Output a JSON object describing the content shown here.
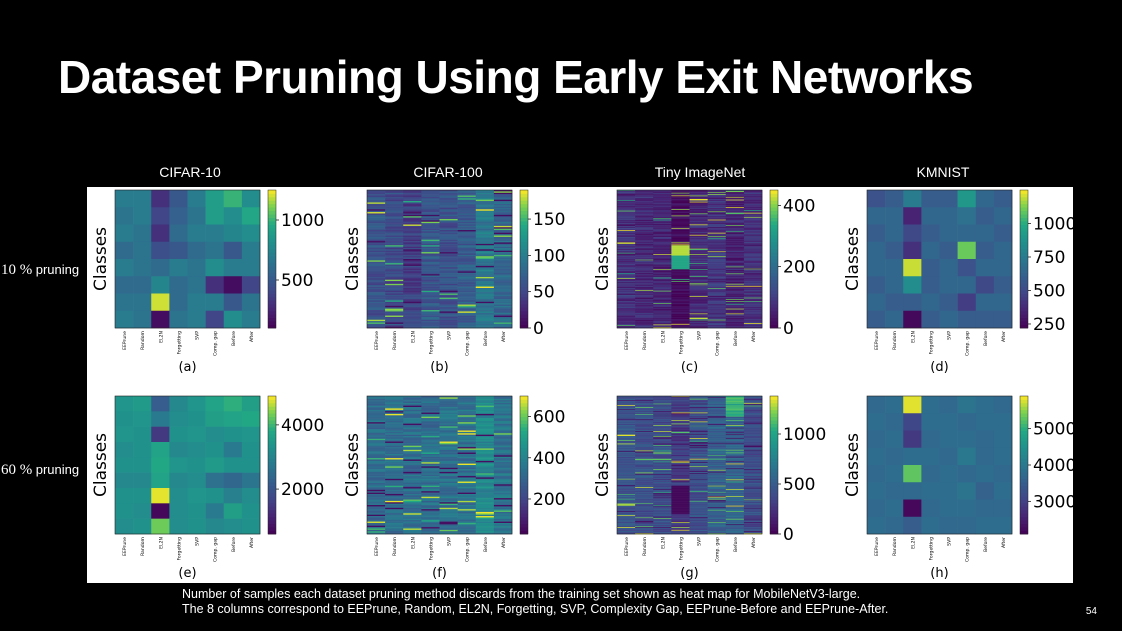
{
  "slide": {
    "title": "Dataset Pruning Using Early Exit Networks",
    "page_number": "54"
  },
  "datasets": [
    "CIFAR-10",
    "CIFAR-100",
    "Tiny ImageNet",
    "KMNIST"
  ],
  "rows": [
    {
      "pct": "10 %",
      "word": "pruning"
    },
    {
      "pct": "60 %",
      "word": "pruning"
    }
  ],
  "caption": {
    "line1": "Number of samples each dataset pruning method discards from the training set shown as heat map for MobileNetV3-large.",
    "line2": "The 8 columns correspond to EEPrune, Random, EL2N, Forgetting, SVP, Complexity Gap, EEPrune-Before and EEPrune-After."
  },
  "chart_data": [
    {
      "type": "heatmap",
      "subplot": "(a)",
      "dataset": "CIFAR-10",
      "pruning": "10 %",
      "ylabel": "Classes",
      "x": [
        "EEPrune",
        "Random",
        "EL2N",
        "Forgetting",
        "SVP",
        "Comp. gap",
        "Before",
        "After"
      ],
      "colorbar": {
        "ticks": [
          500,
          1000
        ],
        "range": [
          100,
          1250
        ]
      },
      "values": [
        [
          700,
          700,
          300,
          500,
          700,
          900,
          1000,
          800
        ],
        [
          650,
          700,
          400,
          550,
          650,
          900,
          800,
          950
        ],
        [
          700,
          650,
          300,
          600,
          700,
          700,
          750,
          800
        ],
        [
          600,
          650,
          450,
          500,
          600,
          650,
          500,
          700
        ],
        [
          700,
          650,
          600,
          700,
          650,
          800,
          700,
          700
        ],
        [
          600,
          600,
          750,
          600,
          650,
          300,
          150,
          400
        ],
        [
          650,
          650,
          1200,
          600,
          700,
          700,
          500,
          650
        ],
        [
          700,
          650,
          150,
          650,
          700,
          400,
          800,
          700
        ]
      ]
    },
    {
      "type": "heatmap",
      "subplot": "(b)",
      "dataset": "CIFAR-100",
      "pruning": "10 %",
      "ylabel": "Classes",
      "x": [
        "EEPrune",
        "Random",
        "EL2N",
        "Forgetting",
        "SVP",
        "Comp. gap",
        "Before",
        "After"
      ],
      "colorbar": {
        "ticks": [
          0,
          50,
          100,
          150
        ],
        "range": [
          0,
          190
        ]
      },
      "generated_rows": 100,
      "column_levels": [
        60,
        55,
        45,
        65,
        60,
        70,
        95,
        80
      ]
    },
    {
      "type": "heatmap",
      "subplot": "(c)",
      "dataset": "Tiny ImageNet",
      "pruning": "10 %",
      "ylabel": "Classes",
      "x": [
        "EEPrune",
        "Random",
        "EL2N",
        "Forgetting",
        "SVP",
        "Comp. gap",
        "Before",
        "After"
      ],
      "colorbar": {
        "ticks": [
          0,
          200,
          400
        ],
        "range": [
          0,
          450
        ]
      },
      "generated_rows": 200,
      "column_levels": [
        80,
        70,
        60,
        10,
        70,
        90,
        60,
        80
      ]
    },
    {
      "type": "heatmap",
      "subplot": "(d)",
      "dataset": "KMNIST",
      "pruning": "10 %",
      "ylabel": "Classes",
      "x": [
        "EEPrune",
        "Random",
        "EL2N",
        "Forgetting",
        "SVP",
        "Comp. gap",
        "Before",
        "After"
      ],
      "colorbar": {
        "ticks": [
          250,
          500,
          750,
          1000
        ],
        "range": [
          220,
          1250
        ]
      },
      "values": [
        [
          550,
          600,
          750,
          600,
          600,
          900,
          650,
          600
        ],
        [
          650,
          650,
          350,
          650,
          650,
          700,
          600,
          650
        ],
        [
          600,
          650,
          500,
          600,
          650,
          650,
          650,
          600
        ],
        [
          650,
          600,
          400,
          650,
          600,
          1100,
          600,
          650
        ],
        [
          650,
          650,
          1200,
          600,
          650,
          550,
          650,
          650
        ],
        [
          600,
          650,
          850,
          600,
          650,
          650,
          500,
          600
        ],
        [
          650,
          600,
          600,
          650,
          600,
          450,
          650,
          650
        ],
        [
          600,
          650,
          250,
          600,
          650,
          600,
          600,
          600
        ]
      ]
    },
    {
      "type": "heatmap",
      "subplot": "(e)",
      "dataset": "CIFAR-10",
      "pruning": "60 %",
      "ylabel": "Classes",
      "x": [
        "EEPrune",
        "Random",
        "EL2N",
        "Forgetting",
        "SVP",
        "Comp. gap",
        "Before",
        "After"
      ],
      "colorbar": {
        "ticks": [
          2000,
          4000
        ],
        "range": [
          600,
          4900
        ]
      },
      "values": [
        [
          3400,
          3500,
          2200,
          3100,
          3400,
          3700,
          3900,
          3600
        ],
        [
          3300,
          3400,
          2800,
          3200,
          3300,
          3600,
          3700,
          3800
        ],
        [
          3400,
          3300,
          1500,
          3300,
          3400,
          3200,
          3300,
          3400
        ],
        [
          3200,
          3300,
          3700,
          3100,
          3200,
          3300,
          2800,
          3300
        ],
        [
          3300,
          3300,
          3800,
          3400,
          3300,
          3500,
          3300,
          3300
        ],
        [
          3100,
          3100,
          3700,
          3100,
          3200,
          2600,
          2400,
          2700
        ],
        [
          3300,
          3300,
          4800,
          3200,
          3400,
          3300,
          2900,
          3200
        ],
        [
          3300,
          3200,
          700,
          3200,
          3300,
          2800,
          3600,
          3300
        ],
        [
          3200,
          3300,
          4300,
          3200,
          3300,
          3100,
          3200,
          3300
        ]
      ]
    },
    {
      "type": "heatmap",
      "subplot": "(f)",
      "dataset": "CIFAR-100",
      "pruning": "60 %",
      "ylabel": "Classes",
      "x": [
        "EEPrune",
        "Random",
        "EL2N",
        "Forgetting",
        "SVP",
        "Comp. gap",
        "Before",
        "After"
      ],
      "colorbar": {
        "ticks": [
          200,
          400,
          600
        ],
        "range": [
          30,
          700
        ]
      },
      "generated_rows": 100,
      "column_levels": [
        330,
        330,
        330,
        330,
        340,
        340,
        420,
        350
      ]
    },
    {
      "type": "heatmap",
      "subplot": "(g)",
      "dataset": "Tiny ImageNet",
      "pruning": "60 %",
      "ylabel": "Classes",
      "x": [
        "EEPrune",
        "Random",
        "EL2N",
        "Forgetting",
        "SVP",
        "Comp. gap",
        "Before",
        "After"
      ],
      "colorbar": {
        "ticks": [
          0,
          500,
          1000
        ],
        "range": [
          0,
          1380
        ]
      },
      "generated_rows": 200,
      "column_levels": [
        450,
        420,
        400,
        300,
        420,
        520,
        550,
        400
      ]
    },
    {
      "type": "heatmap",
      "subplot": "(h)",
      "dataset": "KMNIST",
      "pruning": "60 %",
      "ylabel": "Classes",
      "x": [
        "EEPrune",
        "Random",
        "EL2N",
        "Forgetting",
        "SVP",
        "Comp. gap",
        "Before",
        "After"
      ],
      "colorbar": {
        "ticks": [
          3000,
          4000,
          5000
        ],
        "range": [
          2100,
          5900
        ]
      },
      "values": [
        [
          3700,
          3800,
          5800,
          3800,
          3700,
          3900,
          3800,
          3700
        ],
        [
          3800,
          3700,
          3100,
          3800,
          3800,
          3700,
          3800,
          3800
        ],
        [
          3700,
          3800,
          2900,
          3700,
          3800,
          3800,
          3700,
          3800
        ],
        [
          3800,
          3700,
          3800,
          3800,
          3700,
          4000,
          3700,
          3800
        ],
        [
          3700,
          3800,
          5300,
          3700,
          3800,
          3700,
          3800,
          3700
        ],
        [
          3800,
          3700,
          3700,
          3800,
          3800,
          3900,
          3600,
          3800
        ],
        [
          3700,
          3800,
          2200,
          3700,
          3800,
          3800,
          3700,
          3700
        ],
        [
          3800,
          3700,
          3500,
          3800,
          3700,
          3700,
          3800,
          3800
        ]
      ]
    }
  ]
}
